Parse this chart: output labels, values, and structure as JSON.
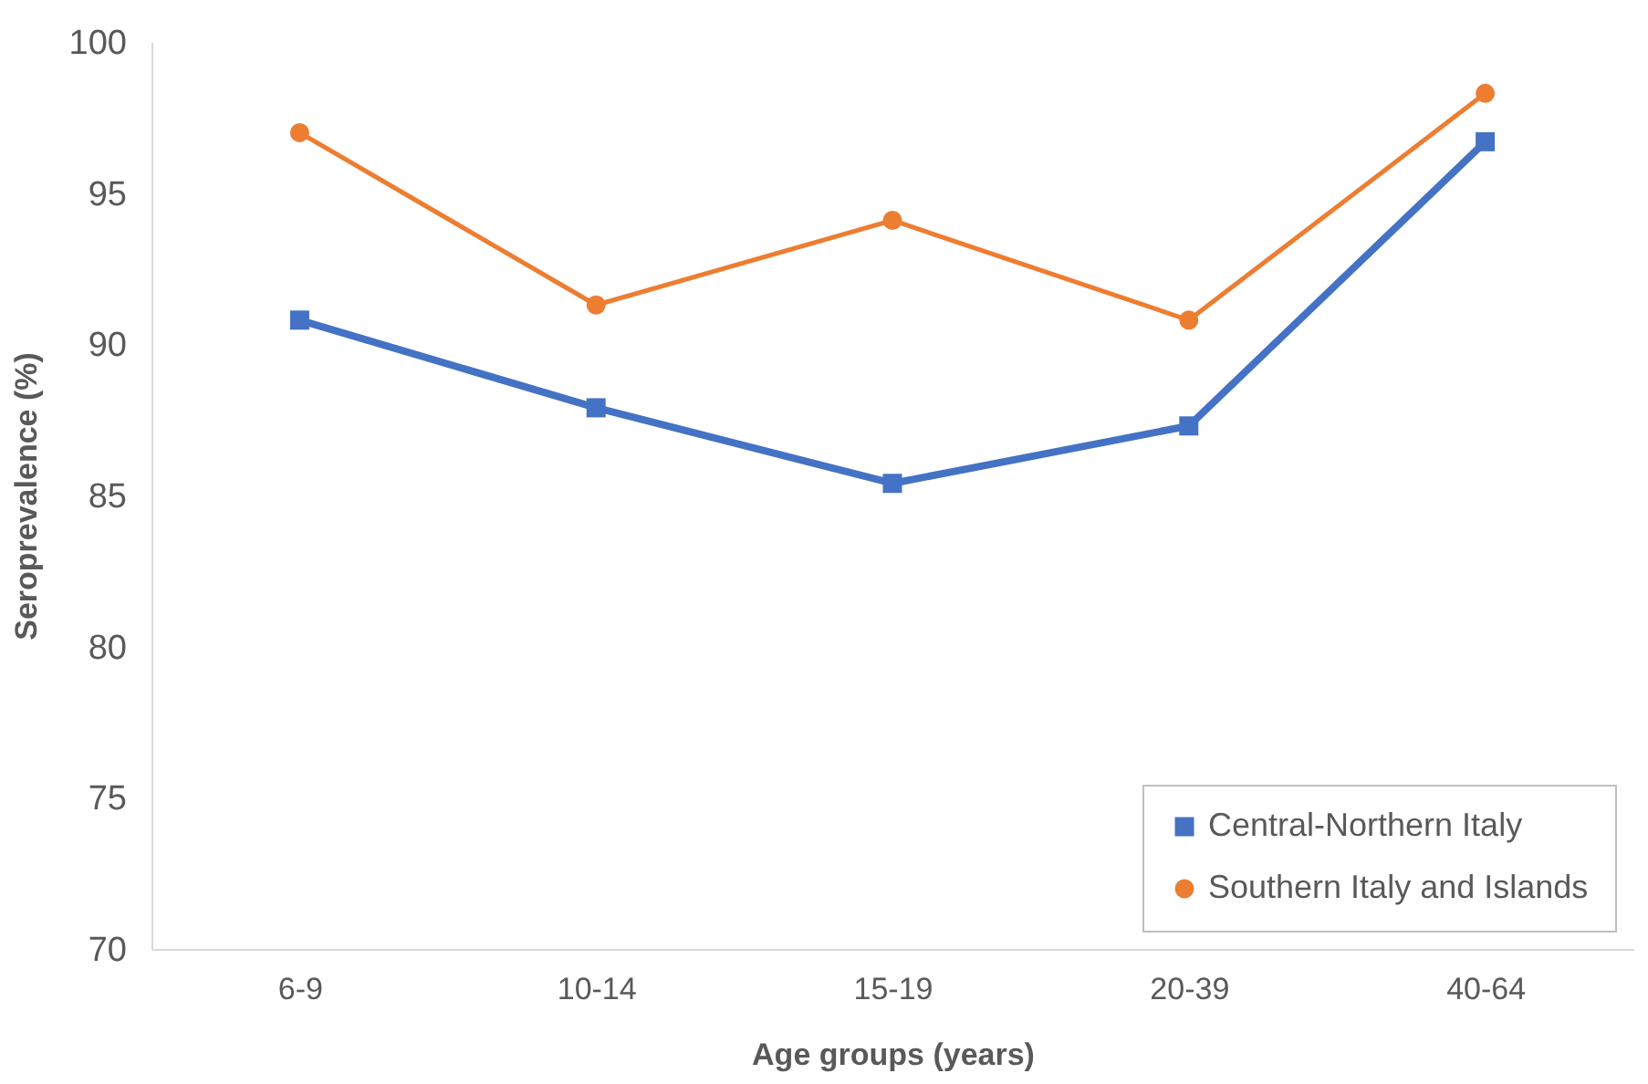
{
  "chart_data": {
    "type": "line",
    "xlabel": "Age groups (years)",
    "ylabel": "Seroprevalence (%)",
    "categories": [
      "6-9",
      "10-14",
      "15-19",
      "20-39",
      "40-64"
    ],
    "series": [
      {
        "name": "Central-Northern Italy",
        "color": "#4472c4",
        "marker": "square",
        "values": [
          90.8,
          87.9,
          85.4,
          87.3,
          96.7
        ]
      },
      {
        "name": "Southern Italy and Islands",
        "color": "#ed7d31",
        "marker": "circle",
        "values": [
          97.0,
          91.3,
          94.1,
          90.8,
          98.3
        ]
      }
    ],
    "ylim": [
      70,
      100
    ],
    "yticks": [
      70,
      75,
      80,
      85,
      90,
      95,
      100
    ],
    "grid": false,
    "legend": "bottom right"
  }
}
